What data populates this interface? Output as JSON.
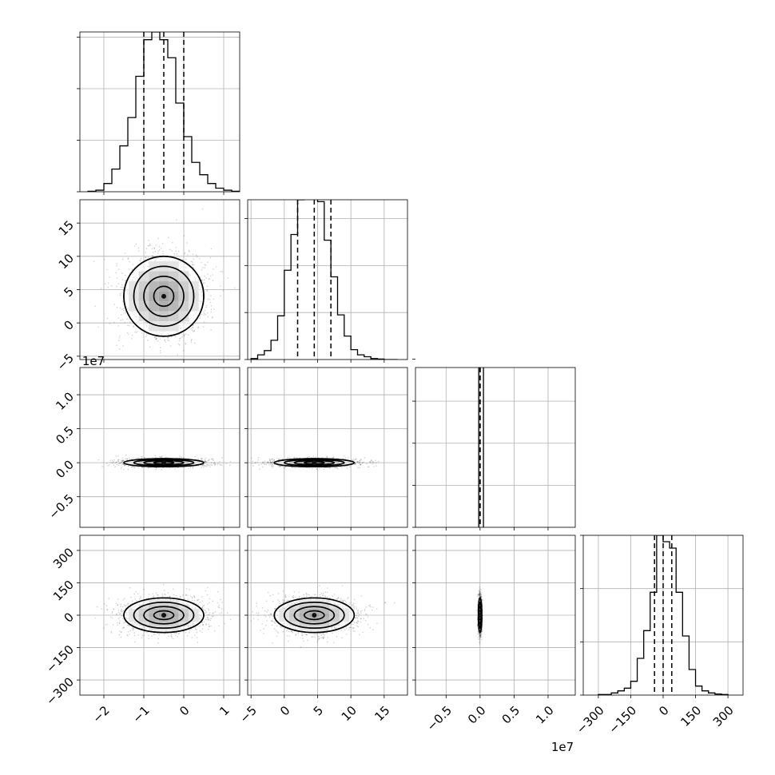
{
  "chart_data": {
    "type": "corner",
    "grid": true,
    "panels": [
      {
        "type": "histogram",
        "row": 0,
        "col": 0,
        "param": 0,
        "xlim": [
          -2.6,
          1.4
        ],
        "ylim": [
          0,
          3.1
        ],
        "bin_edges": [
          -2.4,
          -2.2,
          -2.0,
          -1.8,
          -1.6,
          -1.4,
          -1.2,
          -1.0,
          -0.8,
          -0.6,
          -0.4,
          -0.2,
          0.0,
          0.2,
          0.4,
          0.6,
          0.8,
          1.0,
          1.2,
          1.4
        ],
        "counts": [
          0.01,
          0.03,
          0.16,
          0.44,
          0.89,
          1.44,
          2.24,
          2.95,
          3.1,
          2.95,
          2.6,
          1.72,
          1.07,
          0.57,
          0.33,
          0.16,
          0.07,
          0.03,
          0.01
        ],
        "quantiles": [
          -1.0,
          -0.5,
          0.0
        ],
        "yticks": [
          0,
          1,
          2,
          3
        ]
      },
      {
        "type": "histogram",
        "row": 1,
        "col": 1,
        "param": 1,
        "xlim": [
          -5.5,
          18.5
        ],
        "ylim": [
          0,
          3.4
        ],
        "bin_edges": [
          -5,
          -4,
          -3,
          -2,
          -1,
          0,
          1,
          2,
          3,
          4,
          5,
          6,
          7,
          8,
          9,
          10,
          11,
          12,
          13,
          14,
          15,
          16,
          17
        ],
        "counts": [
          0.02,
          0.1,
          0.19,
          0.41,
          0.93,
          1.9,
          2.66,
          3.4,
          3.6,
          3.6,
          3.36,
          2.54,
          1.76,
          0.95,
          0.5,
          0.21,
          0.1,
          0.06,
          0.02,
          0.01,
          0.0,
          0.0
        ],
        "quantiles": [
          2.0,
          4.5,
          7.0
        ],
        "yticks": [
          0,
          1,
          2,
          3
        ]
      },
      {
        "type": "histogram",
        "row": 2,
        "col": 2,
        "param": 2,
        "xlim": [
          -0.95,
          1.4
        ],
        "ylim": [
          0,
          3.8
        ],
        "bin_edges": [
          -0.02,
          0.05
        ],
        "counts": [
          4.0
        ],
        "quantiles": [
          0.0,
          0.0,
          0.0
        ],
        "yticks": [
          0,
          1,
          2,
          3,
          4
        ]
      },
      {
        "type": "histogram",
        "row": 3,
        "col": 3,
        "param": 3,
        "xlim": [
          -370,
          370
        ],
        "ylim": [
          0,
          3.0
        ],
        "bin_edges": [
          -300,
          -270,
          -240,
          -210,
          -180,
          -150,
          -120,
          -90,
          -60,
          -30,
          0,
          30,
          60,
          90,
          120,
          150,
          180,
          210,
          240,
          270,
          300
        ],
        "counts": [
          0.01,
          0.01,
          0.04,
          0.08,
          0.13,
          0.26,
          0.69,
          1.21,
          1.93,
          3.0,
          2.88,
          2.76,
          1.93,
          1.11,
          0.48,
          0.17,
          0.08,
          0.04,
          0.02,
          0.01
        ],
        "quantiles": [
          -40,
          0,
          40
        ],
        "yticks": [
          0,
          1,
          2,
          3
        ]
      },
      {
        "type": "contour2d",
        "row": 1,
        "col": 0,
        "xparam": 0,
        "yparam": 1,
        "xlim": [
          -2.6,
          1.4
        ],
        "ylim": [
          -5.5,
          18.5
        ],
        "center": [
          -0.5,
          4.0
        ],
        "sigma": [
          0.5,
          3.0
        ],
        "rho": 0.0,
        "levels": [
          0.5,
          1.0,
          1.5,
          2.0
        ]
      },
      {
        "type": "contour2d",
        "row": 2,
        "col": 0,
        "xparam": 0,
        "yparam": 2,
        "xlim": [
          -2.6,
          1.4
        ],
        "ylim": [
          -0.95,
          1.4
        ],
        "center": [
          -0.5,
          0.0
        ],
        "sigma": [
          0.5,
          0.03
        ],
        "rho": 0.0,
        "levels": [
          0.5,
          1.0,
          1.5,
          2.0
        ]
      },
      {
        "type": "contour2d",
        "row": 2,
        "col": 1,
        "xparam": 1,
        "yparam": 2,
        "xlim": [
          -5.5,
          18.5
        ],
        "ylim": [
          -0.95,
          1.4
        ],
        "center": [
          4.5,
          0.0
        ],
        "sigma": [
          3.0,
          0.03
        ],
        "rho": 0.0,
        "levels": [
          0.5,
          1.0,
          1.5,
          2.0
        ]
      },
      {
        "type": "contour2d",
        "row": 3,
        "col": 0,
        "xparam": 0,
        "yparam": 3,
        "xlim": [
          -2.6,
          1.4
        ],
        "ylim": [
          -370,
          370
        ],
        "center": [
          -0.5,
          0.0
        ],
        "sigma": [
          0.5,
          40
        ],
        "rho": 0.0,
        "levels": [
          0.5,
          1.0,
          1.5,
          2.0
        ]
      },
      {
        "type": "contour2d",
        "row": 3,
        "col": 1,
        "xparam": 1,
        "yparam": 3,
        "xlim": [
          -5.5,
          18.5
        ],
        "ylim": [
          -370,
          370
        ],
        "center": [
          4.5,
          0.0
        ],
        "sigma": [
          3.0,
          40
        ],
        "rho": 0.0,
        "levels": [
          0.5,
          1.0,
          1.5,
          2.0
        ]
      },
      {
        "type": "contour2d",
        "row": 3,
        "col": 2,
        "xparam": 2,
        "yparam": 3,
        "xlim": [
          -0.95,
          1.4
        ],
        "ylim": [
          -370,
          370
        ],
        "center": [
          0.0,
          0.0
        ],
        "sigma": [
          0.012,
          40
        ],
        "rho": 0.0,
        "levels": [
          0.5,
          1.0,
          1.5,
          2.0
        ]
      }
    ],
    "axes": {
      "x_ticks": [
        {
          "values": [
            -2,
            -1,
            0,
            1
          ],
          "labels": [
            "−2",
            "−1",
            "0",
            "1"
          ]
        },
        {
          "values": [
            -5,
            0,
            5,
            10,
            15
          ],
          "labels": [
            "−5",
            "0",
            "5",
            "10",
            "15"
          ]
        },
        {
          "values": [
            -0.5,
            0.0,
            0.5,
            1.0
          ],
          "labels": [
            "−0.5",
            "0.0",
            "0.5",
            "1.0"
          ]
        },
        {
          "values": [
            -300,
            -150,
            0,
            150,
            300
          ],
          "labels": [
            "−300",
            "−150",
            "0",
            "150",
            "300"
          ]
        }
      ],
      "y_ticks": [
        null,
        {
          "values": [
            -5,
            0,
            5,
            10,
            15
          ],
          "labels": [
            "−5",
            "0",
            "5",
            "10",
            "15"
          ]
        },
        {
          "values": [
            -0.5,
            0.0,
            0.5,
            1.0
          ],
          "labels": [
            "−0.5",
            "0.0",
            "0.5",
            "1.0"
          ]
        },
        {
          "values": [
            -300,
            -150,
            0,
            150,
            300
          ],
          "labels": [
            "−300",
            "−150",
            "0",
            "150",
            "300"
          ]
        }
      ],
      "x_offset_label": "1e7",
      "y_offset_label": "1e7"
    }
  }
}
